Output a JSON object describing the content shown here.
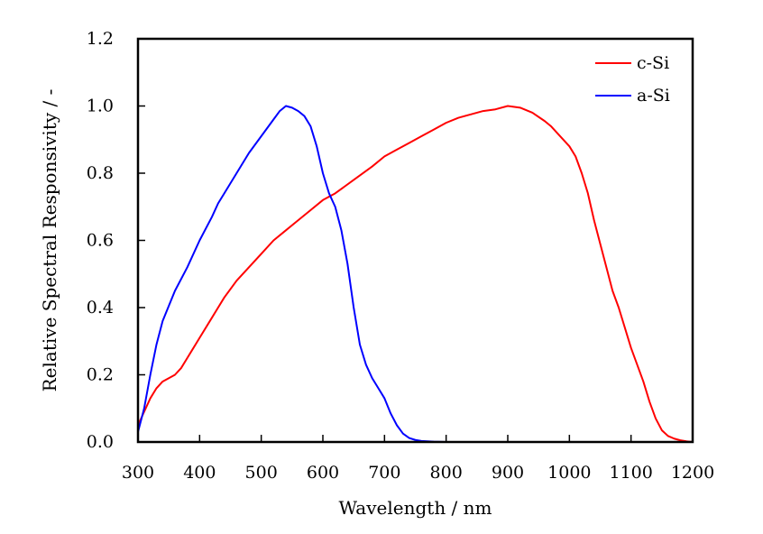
{
  "chart_data": {
    "type": "line",
    "title": "",
    "xlabel": "Wavelength / nm",
    "ylabel": "Relative Spectral Responsivity / -",
    "xlim": [
      300,
      1200
    ],
    "ylim": [
      0.0,
      1.2
    ],
    "xticks": [
      "300",
      "400",
      "500",
      "600",
      "700",
      "800",
      "900",
      "1000",
      "1100",
      "1200"
    ],
    "yticks": [
      "0.0",
      "0.2",
      "0.4",
      "0.6",
      "0.8",
      "1.0",
      "1.2"
    ],
    "grid": false,
    "legend_position": "top-right",
    "series": [
      {
        "name": "c-Si",
        "color": "#ff0000",
        "x": [
          300,
          310,
          320,
          330,
          340,
          350,
          360,
          370,
          380,
          390,
          400,
          420,
          430,
          440,
          460,
          480,
          500,
          520,
          540,
          560,
          580,
          600,
          620,
          650,
          680,
          700,
          720,
          740,
          760,
          780,
          800,
          820,
          840,
          860,
          880,
          900,
          920,
          940,
          960,
          970,
          980,
          1000,
          1010,
          1020,
          1030,
          1040,
          1050,
          1060,
          1070,
          1080,
          1090,
          1100,
          1110,
          1120,
          1130,
          1140,
          1150,
          1160,
          1170,
          1180,
          1190,
          1200
        ],
        "values": [
          0.05,
          0.09,
          0.13,
          0.16,
          0.18,
          0.19,
          0.2,
          0.22,
          0.25,
          0.28,
          0.31,
          0.37,
          0.4,
          0.43,
          0.48,
          0.52,
          0.56,
          0.6,
          0.63,
          0.66,
          0.69,
          0.72,
          0.74,
          0.78,
          0.82,
          0.85,
          0.87,
          0.89,
          0.91,
          0.93,
          0.95,
          0.965,
          0.975,
          0.985,
          0.99,
          1.0,
          0.995,
          0.98,
          0.955,
          0.94,
          0.92,
          0.88,
          0.85,
          0.8,
          0.74,
          0.66,
          0.59,
          0.52,
          0.45,
          0.4,
          0.34,
          0.28,
          0.23,
          0.18,
          0.12,
          0.07,
          0.035,
          0.018,
          0.01,
          0.005,
          0.002,
          0.0
        ]
      },
      {
        "name": "a-Si",
        "color": "#0000ff",
        "x": [
          300,
          310,
          320,
          330,
          340,
          360,
          380,
          400,
          420,
          430,
          440,
          460,
          480,
          500,
          520,
          530,
          540,
          550,
          560,
          570,
          580,
          590,
          600,
          610,
          620,
          630,
          640,
          650,
          660,
          670,
          680,
          690,
          700,
          710,
          720,
          730,
          740,
          750,
          760,
          780,
          800,
          850,
          900
        ],
        "values": [
          0.03,
          0.1,
          0.2,
          0.29,
          0.36,
          0.45,
          0.52,
          0.6,
          0.67,
          0.71,
          0.74,
          0.8,
          0.86,
          0.91,
          0.96,
          0.985,
          1.0,
          0.995,
          0.985,
          0.97,
          0.94,
          0.88,
          0.8,
          0.74,
          0.7,
          0.63,
          0.53,
          0.4,
          0.29,
          0.23,
          0.19,
          0.16,
          0.13,
          0.085,
          0.05,
          0.025,
          0.012,
          0.006,
          0.003,
          0.001,
          0.0,
          0.0,
          0.0
        ]
      }
    ]
  }
}
